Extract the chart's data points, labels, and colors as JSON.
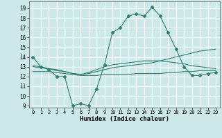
{
  "title": "",
  "xlabel": "Humidex (Indice chaleur)",
  "background_color": "#cce8e8",
  "grid_color": "#ffffff",
  "line_color": "#2e7d70",
  "xlim": [
    -0.5,
    23.5
  ],
  "ylim": [
    8.8,
    19.7
  ],
  "yticks": [
    9,
    10,
    11,
    12,
    13,
    14,
    15,
    16,
    17,
    18,
    19
  ],
  "xticks": [
    0,
    1,
    2,
    3,
    4,
    5,
    6,
    7,
    8,
    9,
    10,
    11,
    12,
    13,
    14,
    15,
    16,
    17,
    18,
    19,
    20,
    21,
    22,
    23
  ],
  "xtick_labels": [
    "0",
    "1",
    "2",
    "3",
    "4",
    "5",
    "6",
    "7",
    "8",
    "9",
    "10",
    "11",
    "12",
    "13",
    "14",
    "15",
    "16",
    "17",
    "18",
    "19",
    "20",
    "21",
    "22",
    "23"
  ],
  "series": [
    {
      "x": [
        0,
        1,
        2,
        3,
        4,
        5,
        6,
        7,
        8,
        9,
        10,
        11,
        12,
        13,
        14,
        15,
        16,
        17,
        18,
        19,
        20,
        21,
        22,
        23
      ],
      "y": [
        14,
        13,
        12.7,
        12,
        12,
        9,
        9.2,
        9,
        10.7,
        13.2,
        16.5,
        17,
        18.2,
        18.4,
        18.2,
        19.1,
        18.2,
        16.5,
        14.8,
        13,
        12.1,
        12.1,
        12.3,
        12.4
      ],
      "marker": "D",
      "markersize": 2.5
    },
    {
      "x": [
        0,
        1,
        2,
        3,
        4,
        5,
        6,
        7,
        8,
        9,
        10,
        11,
        12,
        13,
        14,
        15,
        16,
        17,
        18,
        19,
        20,
        21,
        22,
        23
      ],
      "y": [
        13.0,
        12.9,
        12.8,
        12.7,
        12.5,
        12.3,
        12.2,
        12.3,
        12.5,
        12.7,
        12.9,
        13.0,
        13.1,
        13.2,
        13.3,
        13.4,
        13.6,
        13.8,
        14.0,
        14.2,
        14.4,
        14.6,
        14.7,
        14.8
      ],
      "marker": null,
      "markersize": 0
    },
    {
      "x": [
        0,
        1,
        2,
        3,
        4,
        5,
        6,
        7,
        8,
        9,
        10,
        11,
        12,
        13,
        14,
        15,
        16,
        17,
        18,
        19,
        20,
        21,
        22,
        23
      ],
      "y": [
        12.5,
        12.5,
        12.5,
        12.4,
        12.3,
        12.2,
        12.1,
        12.1,
        12.1,
        12.2,
        12.2,
        12.2,
        12.2,
        12.3,
        12.3,
        12.3,
        12.3,
        12.4,
        12.4,
        12.5,
        12.5,
        12.6,
        12.6,
        12.6
      ],
      "marker": null,
      "markersize": 0
    },
    {
      "x": [
        0,
        1,
        2,
        3,
        4,
        5,
        6,
        7,
        8,
        9,
        10,
        11,
        12,
        13,
        14,
        15,
        16,
        17,
        18,
        19,
        20,
        21,
        22,
        23
      ],
      "y": [
        13.1,
        13.0,
        12.8,
        12.6,
        12.5,
        12.3,
        12.2,
        12.4,
        12.7,
        13.0,
        13.2,
        13.3,
        13.4,
        13.5,
        13.6,
        13.6,
        13.6,
        13.5,
        13.4,
        13.3,
        13.1,
        13.0,
        12.9,
        12.8
      ],
      "marker": null,
      "markersize": 0
    }
  ]
}
